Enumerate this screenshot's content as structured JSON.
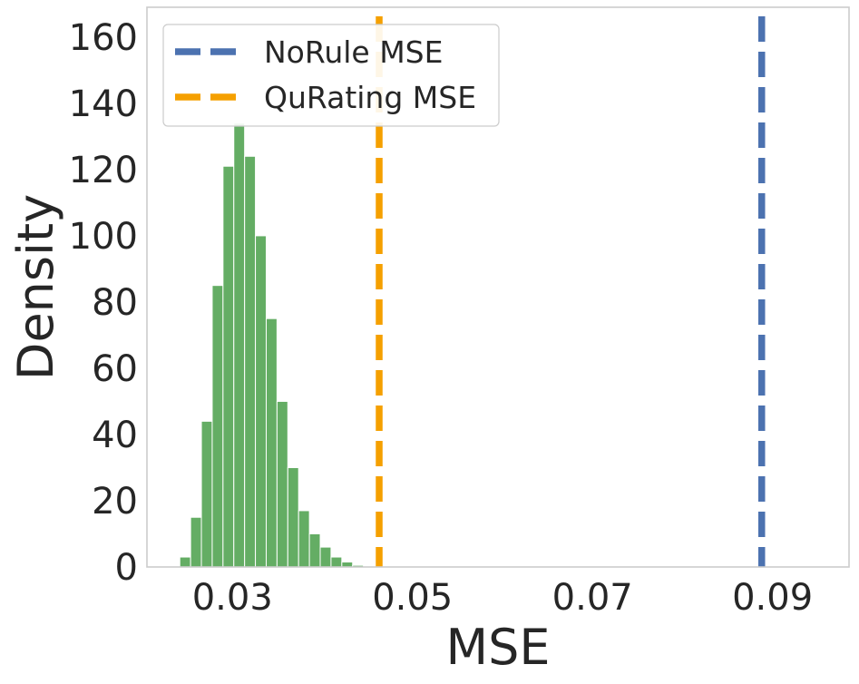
{
  "chart_data": {
    "type": "histogram",
    "title": "",
    "xlabel": "MSE",
    "ylabel": "Density",
    "xlim": [
      0.0205,
      0.0985
    ],
    "ylim": [
      0,
      169
    ],
    "xticks": [
      0.03,
      0.05,
      0.07,
      0.09
    ],
    "xtick_labels": [
      "0.03",
      "0.05",
      "0.07",
      "0.09"
    ],
    "yticks": [
      0,
      20,
      40,
      60,
      80,
      100,
      120,
      140,
      160
    ],
    "ytick_labels": [
      "0",
      "20",
      "40",
      "60",
      "80",
      "100",
      "120",
      "140",
      "160"
    ],
    "grid": false,
    "legend_position": "upper-left",
    "histogram": {
      "bin_edges": [
        0.02415,
        0.02535,
        0.02655,
        0.02775,
        0.02895,
        0.03015,
        0.03135,
        0.03255,
        0.03375,
        0.03495,
        0.03615,
        0.03735,
        0.03855,
        0.03975,
        0.04095,
        0.04215,
        0.04335,
        0.04455
      ],
      "densities": [
        3,
        15,
        44,
        85,
        121,
        134,
        124,
        100,
        75,
        50,
        30,
        17,
        10,
        6,
        3,
        1.5,
        0.5
      ],
      "color": "#64ad64"
    },
    "lines": [
      {
        "name": "NoRule MSE",
        "x": 0.0888,
        "color": "#4c72b0",
        "style": "dashed"
      },
      {
        "name": "QuRating MSE",
        "x": 0.0463,
        "color": "#f5a000",
        "style": "dashed"
      }
    ],
    "legend": [
      "NoRule MSE",
      "QuRating MSE"
    ]
  }
}
